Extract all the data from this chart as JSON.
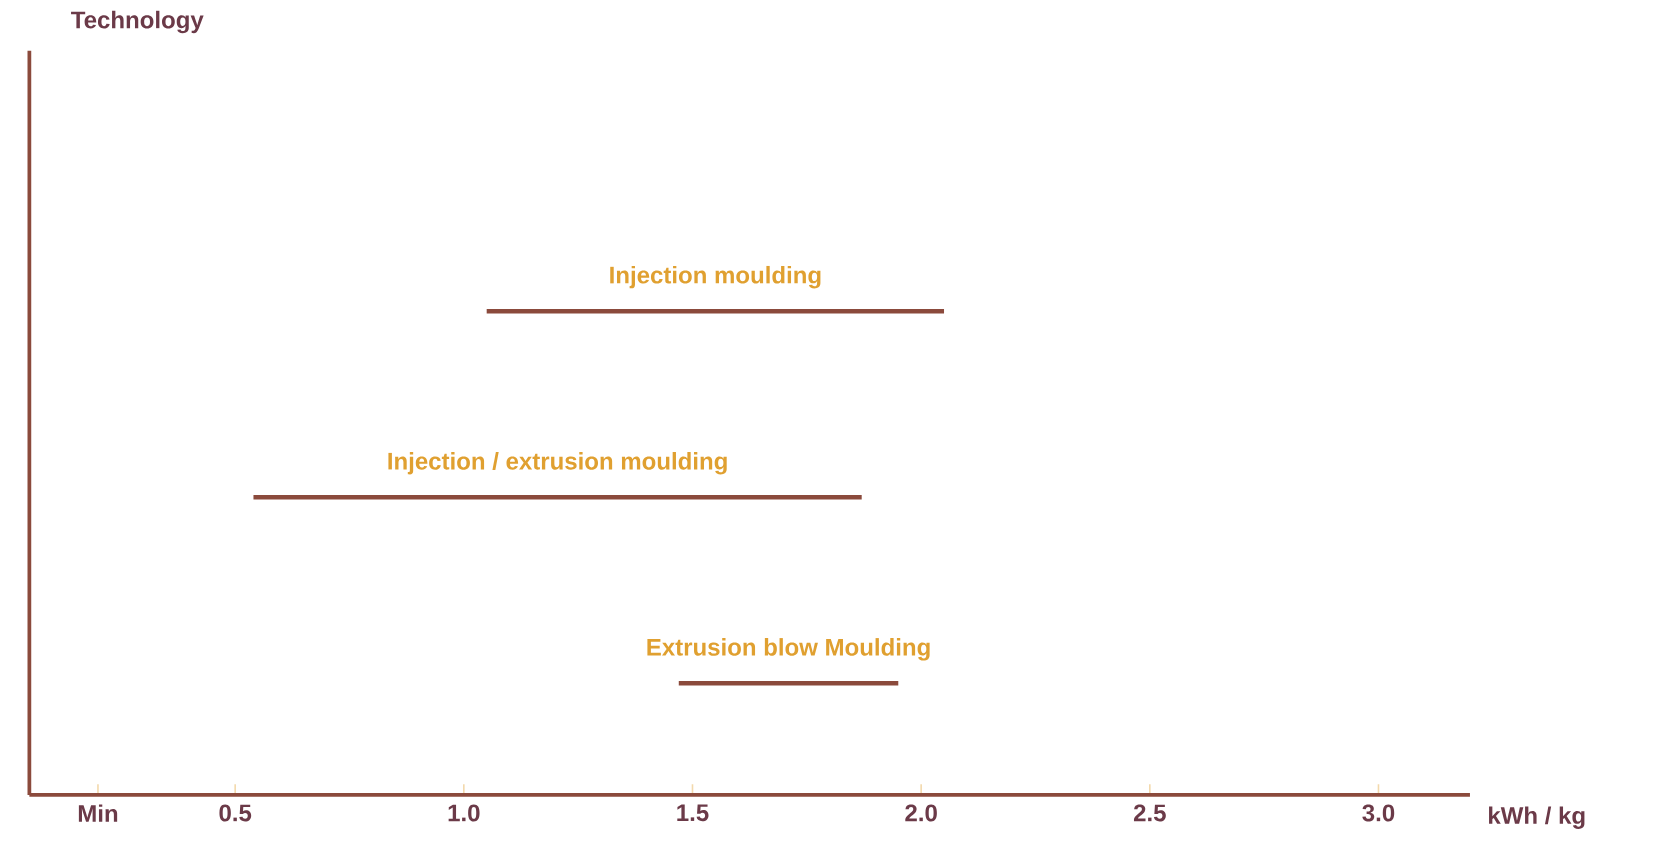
{
  "chart_data": {
    "type": "bar",
    "orientation": "horizontal",
    "annotations": [
      "Technology"
    ],
    "xlabel": "kWh / kg",
    "categories": [
      "Injection moulding",
      "Injection / extrusion moulding",
      "Extrusion blow Moulding"
    ],
    "base": [
      1.05,
      0.54,
      1.47
    ],
    "values": [
      1.0,
      1.33,
      0.48
    ],
    "color": "#8b4a3c",
    "xlim": [
      0.05,
      3.2
    ],
    "xticks": [
      {
        "value": 0.2,
        "label": "Min"
      },
      0.5,
      {
        "value": 1.0,
        "label": "1.0"
      },
      1.5,
      {
        "value": 2.0,
        "label": "2.0"
      },
      2.5,
      {
        "value": 3.0,
        "label": "3.0"
      }
    ]
  }
}
